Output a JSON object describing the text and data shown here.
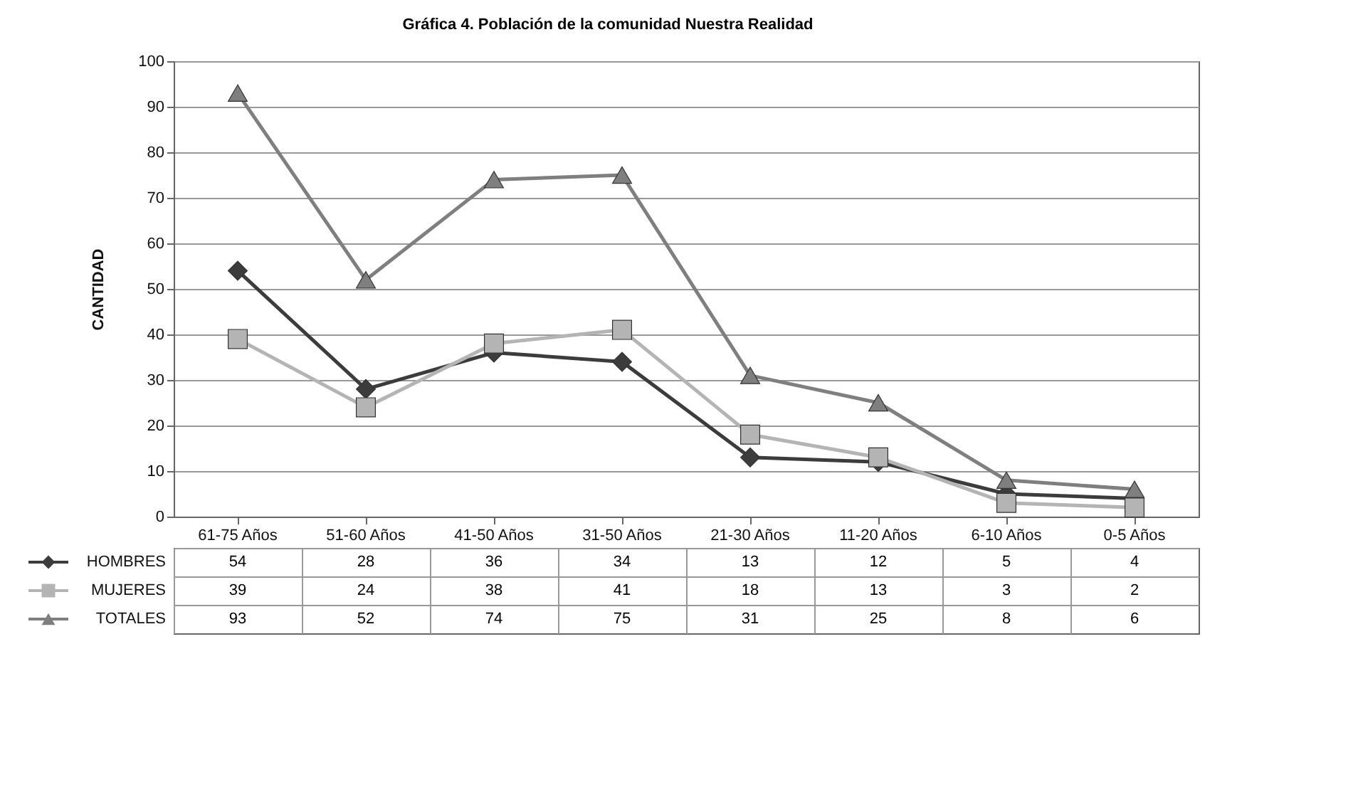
{
  "chart_data": {
    "type": "line",
    "title": "Gráfica 4. Población de la comunidad Nuestra Realidad",
    "ylabel": "CANTIDAD",
    "categories": [
      "61-75 Años",
      "51-60 Años",
      "41-50 Años",
      "31-50 Años",
      "21-30 Años",
      "11-20 Años",
      "6-10 Años",
      "0-5 Años"
    ],
    "ylim": [
      0,
      100
    ],
    "yticks": [
      0,
      10,
      20,
      30,
      40,
      50,
      60,
      70,
      80,
      90,
      100
    ],
    "grid": "y",
    "legend": "bottom",
    "data_labels": true,
    "series": [
      {
        "name": "HOMBRES",
        "color": "#3c3c3c",
        "marker": "diamond",
        "values": [
          54,
          28,
          36,
          34,
          13,
          12,
          5,
          4
        ]
      },
      {
        "name": "MUJERES",
        "color": "#b4b4b4",
        "marker": "square",
        "values": [
          39,
          24,
          38,
          41,
          18,
          13,
          3,
          2
        ]
      },
      {
        "name": "TOTALES",
        "color": "#7f7f7f",
        "marker": "triangle",
        "values": [
          93,
          52,
          74,
          75,
          31,
          25,
          8,
          6
        ]
      }
    ]
  }
}
